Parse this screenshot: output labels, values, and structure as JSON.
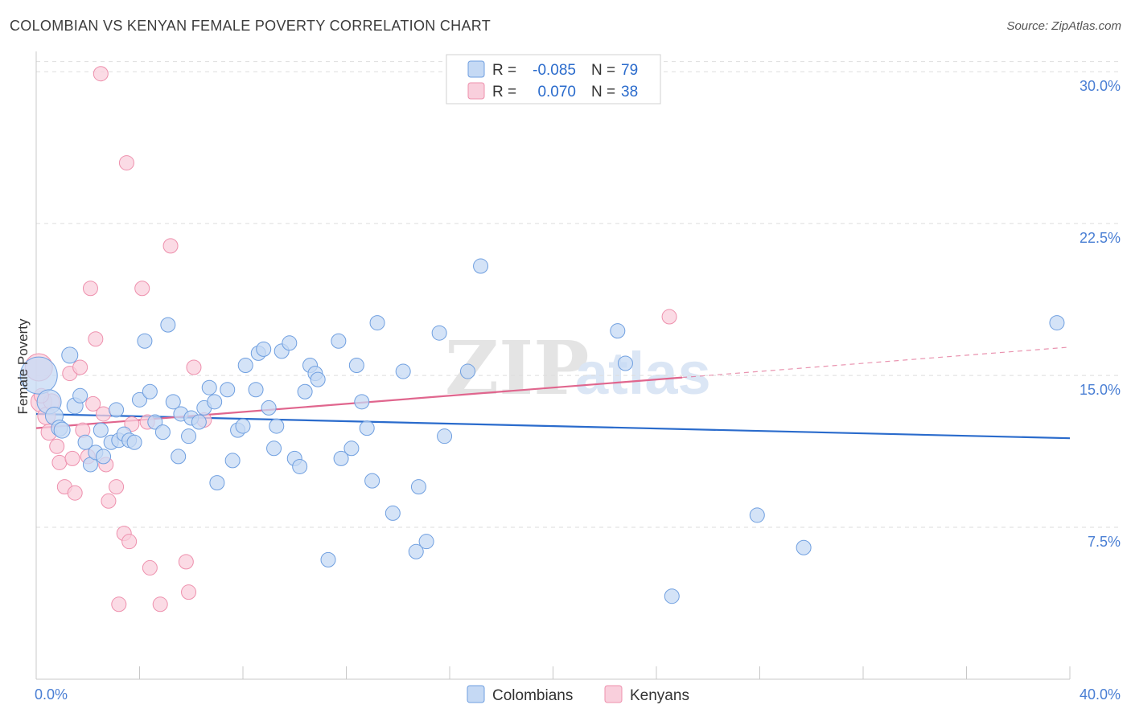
{
  "title": "COLOMBIAN VS KENYAN FEMALE POVERTY CORRELATION CHART",
  "source": "Source: ZipAtlas.com",
  "watermark": {
    "zip": "ZIP",
    "atlas": "atlas"
  },
  "colors": {
    "blue_fill": "#c5d9f4",
    "blue_stroke": "#6f9fe0",
    "blue_line": "#2a6bcc",
    "pink_fill": "#f9cfdc",
    "pink_stroke": "#ee90ad",
    "pink_line": "#e0668e",
    "tick_text": "#4a7fd4",
    "grid": "#dedede",
    "axis": "#c8c8c8"
  },
  "legend_top": {
    "rows": [
      {
        "r_label": "R =",
        "r_value": "-0.085",
        "n_label": "N =",
        "n_value": "79"
      },
      {
        "r_label": "R =",
        "r_value": "0.070",
        "n_label": "N =",
        "n_value": "38"
      }
    ]
  },
  "legend_bottom": {
    "items": [
      "Colombians",
      "Kenyans"
    ]
  },
  "chart_data": {
    "type": "scatter",
    "title": "COLOMBIAN VS KENYAN FEMALE POVERTY CORRELATION CHART",
    "xlabel": "",
    "ylabel": "Female Poverty",
    "xlim": [
      0,
      40
    ],
    "ylim": [
      0,
      31
    ],
    "x_tick_labels": [
      "0.0%",
      "40.0%"
    ],
    "y_ticks": [
      7.5,
      15.0,
      22.5,
      30.0
    ],
    "y_tick_labels": [
      "7.5%",
      "15.0%",
      "22.5%",
      "30.0%"
    ],
    "grid": "horizontal dashed",
    "legend": "top-center and bottom-center",
    "series": [
      {
        "name": "Colombians",
        "r": -0.085,
        "n": 79,
        "trend": {
          "x": [
            0,
            40
          ],
          "y": [
            13.1,
            11.9
          ]
        },
        "points": [
          [
            0.1,
            15.0,
            22
          ],
          [
            0.5,
            13.7,
            14
          ],
          [
            0.7,
            13.0,
            10
          ],
          [
            0.9,
            12.4,
            9
          ],
          [
            1.0,
            12.3,
            9
          ],
          [
            1.3,
            16.0,
            9
          ],
          [
            1.5,
            13.5,
            9
          ],
          [
            1.7,
            14.0,
            8
          ],
          [
            1.9,
            11.7,
            8
          ],
          [
            2.1,
            10.6,
            8
          ],
          [
            2.3,
            11.2,
            8
          ],
          [
            2.5,
            12.3,
            8
          ],
          [
            2.6,
            11.0,
            8
          ],
          [
            2.9,
            11.7,
            8
          ],
          [
            3.1,
            13.3,
            8
          ],
          [
            3.2,
            11.8,
            8
          ],
          [
            3.4,
            12.1,
            8
          ],
          [
            3.6,
            11.8,
            8
          ],
          [
            3.8,
            11.7,
            8
          ],
          [
            4.0,
            13.8,
            8
          ],
          [
            4.2,
            16.7,
            8
          ],
          [
            4.4,
            14.2,
            8
          ],
          [
            4.6,
            12.7,
            8
          ],
          [
            4.9,
            12.2,
            8
          ],
          [
            5.1,
            17.5,
            8
          ],
          [
            5.3,
            13.7,
            8
          ],
          [
            5.5,
            11.0,
            8
          ],
          [
            5.6,
            13.1,
            8
          ],
          [
            5.9,
            12.0,
            8
          ],
          [
            6.0,
            12.9,
            8
          ],
          [
            6.3,
            12.7,
            8
          ],
          [
            6.5,
            13.4,
            8
          ],
          [
            6.7,
            14.4,
            8
          ],
          [
            6.9,
            13.7,
            8
          ],
          [
            7.0,
            9.7,
            8
          ],
          [
            7.4,
            14.3,
            8
          ],
          [
            7.6,
            10.8,
            8
          ],
          [
            7.8,
            12.3,
            8
          ],
          [
            8.0,
            12.5,
            8
          ],
          [
            8.1,
            15.5,
            8
          ],
          [
            8.5,
            14.3,
            8
          ],
          [
            8.6,
            16.1,
            8
          ],
          [
            8.8,
            16.3,
            8
          ],
          [
            9.0,
            13.4,
            8
          ],
          [
            9.2,
            11.4,
            8
          ],
          [
            9.3,
            12.5,
            8
          ],
          [
            9.5,
            16.2,
            8
          ],
          [
            9.8,
            16.6,
            8
          ],
          [
            10.0,
            10.9,
            8
          ],
          [
            10.2,
            10.5,
            8
          ],
          [
            10.4,
            14.2,
            8
          ],
          [
            10.6,
            15.5,
            8
          ],
          [
            10.8,
            15.1,
            8
          ],
          [
            10.9,
            14.8,
            8
          ],
          [
            11.3,
            5.9,
            8
          ],
          [
            11.7,
            16.7,
            8
          ],
          [
            11.8,
            10.9,
            8
          ],
          [
            12.2,
            11.4,
            8
          ],
          [
            12.4,
            15.5,
            8
          ],
          [
            12.6,
            13.7,
            8
          ],
          [
            12.8,
            12.4,
            8
          ],
          [
            13.0,
            9.8,
            8
          ],
          [
            13.2,
            17.6,
            8
          ],
          [
            13.8,
            8.2,
            8
          ],
          [
            14.2,
            15.2,
            8
          ],
          [
            14.7,
            6.3,
            8
          ],
          [
            14.8,
            9.5,
            8
          ],
          [
            15.1,
            6.8,
            8
          ],
          [
            15.6,
            17.1,
            8
          ],
          [
            15.8,
            12.0,
            8
          ],
          [
            16.7,
            15.2,
            8
          ],
          [
            17.2,
            20.4,
            8
          ],
          [
            22.5,
            17.2,
            8
          ],
          [
            22.8,
            15.6,
            8
          ],
          [
            24.6,
            4.1,
            8
          ],
          [
            27.9,
            8.1,
            8
          ],
          [
            29.7,
            6.5,
            8
          ],
          [
            39.5,
            17.6,
            8
          ]
        ]
      },
      {
        "name": "Kenyans",
        "r": 0.07,
        "n": 38,
        "trend": {
          "x": [
            0,
            25
          ],
          "y": [
            12.4,
            14.9
          ]
        },
        "trend_extension": {
          "x": [
            25,
            40
          ],
          "y": [
            14.9,
            16.4
          ]
        },
        "points": [
          [
            0.1,
            15.4,
            16
          ],
          [
            0.2,
            13.7,
            12
          ],
          [
            0.4,
            13.0,
            10
          ],
          [
            0.5,
            12.2,
            9
          ],
          [
            0.6,
            13.7,
            9
          ],
          [
            0.8,
            11.5,
            8
          ],
          [
            0.9,
            10.7,
            8
          ],
          [
            1.1,
            9.5,
            8
          ],
          [
            1.3,
            15.1,
            8
          ],
          [
            1.4,
            10.9,
            8
          ],
          [
            1.5,
            9.2,
            8
          ],
          [
            1.7,
            15.4,
            8
          ],
          [
            1.8,
            12.3,
            8
          ],
          [
            2.0,
            11.0,
            8
          ],
          [
            2.1,
            19.3,
            8
          ],
          [
            2.2,
            13.6,
            8
          ],
          [
            2.3,
            16.8,
            8
          ],
          [
            2.6,
            13.1,
            8
          ],
          [
            2.7,
            10.6,
            8
          ],
          [
            2.8,
            8.8,
            8
          ],
          [
            3.1,
            9.5,
            8
          ],
          [
            3.2,
            3.7,
            8
          ],
          [
            3.4,
            7.2,
            8
          ],
          [
            3.6,
            6.8,
            8
          ],
          [
            3.7,
            12.6,
            8
          ],
          [
            3.5,
            25.5,
            8
          ],
          [
            2.5,
            29.9,
            8
          ],
          [
            4.1,
            19.3,
            8
          ],
          [
            4.3,
            12.7,
            8
          ],
          [
            4.4,
            5.5,
            8
          ],
          [
            4.8,
            3.7,
            8
          ],
          [
            5.2,
            21.4,
            8
          ],
          [
            5.8,
            5.8,
            8
          ],
          [
            5.9,
            4.3,
            8
          ],
          [
            6.1,
            15.4,
            8
          ],
          [
            6.5,
            12.8,
            8
          ],
          [
            24.5,
            17.9,
            8
          ],
          [
            0.2,
            14.0,
            8
          ]
        ]
      }
    ]
  }
}
